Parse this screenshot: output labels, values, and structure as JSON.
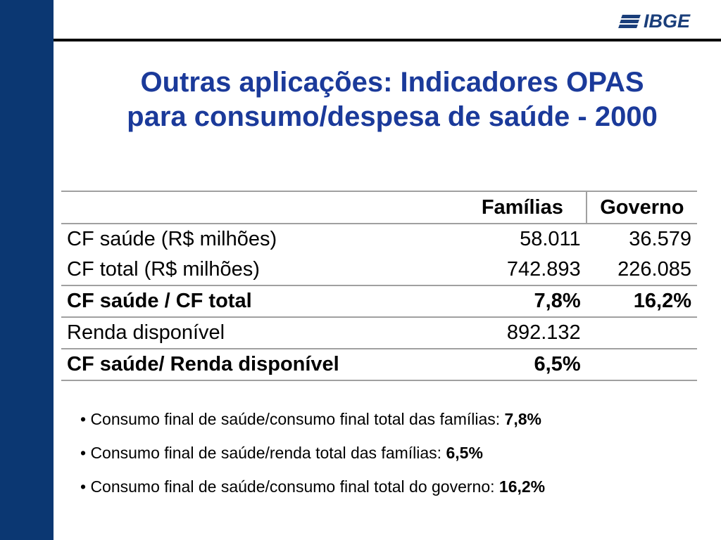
{
  "logo": {
    "text": "IBGE"
  },
  "title": {
    "line1": "Outras aplicações: Indicadores OPAS",
    "line2": "para consumo/despesa de saúde - 2000"
  },
  "table": {
    "headers": [
      "",
      "Famílias",
      "Governo"
    ],
    "rows": [
      {
        "label": "CF saúde (R$ milhões)",
        "familias": "58.011",
        "governo": "36.579",
        "bold": false
      },
      {
        "label": "CF total (R$ milhões)",
        "familias": "742.893",
        "governo": "226.085",
        "bold": false
      },
      {
        "label": "CF saúde / CF total",
        "familias": "7,8%",
        "governo": "16,2%",
        "bold": true
      },
      {
        "label": "Renda disponível",
        "familias": "892.132",
        "governo": "",
        "bold": false
      },
      {
        "label": "CF saúde/ Renda disponível",
        "familias": "6,5%",
        "governo": "",
        "bold": true
      }
    ]
  },
  "bullets": [
    {
      "text": "• Consumo final de saúde/consumo final total das famílias: ",
      "value": "7,8%"
    },
    {
      "text": "• Consumo final de saúde/renda total das famílias: ",
      "value": "6,5%"
    },
    {
      "text": "• Consumo final de saúde/consumo final total do governo: ",
      "value": "16,2%"
    }
  ],
  "colors": {
    "sidebar": "#0b3772",
    "title": "#1b3a9a",
    "logo": "#1a3e7a"
  }
}
